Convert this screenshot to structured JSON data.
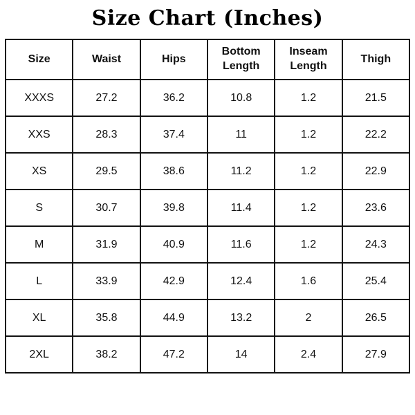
{
  "title": "Size Chart (Inches)",
  "colors": {
    "background": "#ffffff",
    "text": "#111111",
    "border": "#111111"
  },
  "chart_data": {
    "type": "table",
    "title": "Size Chart (Inches)",
    "unit": "Inches",
    "columns": [
      "Size",
      "Waist",
      "Hips",
      "Bottom Length",
      "Inseam Length",
      "Thigh"
    ],
    "rows": [
      [
        "XXXS",
        "27.2",
        "36.2",
        "10.8",
        "1.2",
        "21.5"
      ],
      [
        "XXS",
        "28.3",
        "37.4",
        "11",
        "1.2",
        "22.2"
      ],
      [
        "XS",
        "29.5",
        "38.6",
        "11.2",
        "1.2",
        "22.9"
      ],
      [
        "S",
        "30.7",
        "39.8",
        "11.4",
        "1.2",
        "23.6"
      ],
      [
        "M",
        "31.9",
        "40.9",
        "11.6",
        "1.2",
        "24.3"
      ],
      [
        "L",
        "33.9",
        "42.9",
        "12.4",
        "1.6",
        "25.4"
      ],
      [
        "XL",
        "35.8",
        "44.9",
        "13.2",
        "2",
        "26.5"
      ],
      [
        "2XL",
        "38.2",
        "47.2",
        "14",
        "2.4",
        "27.9"
      ]
    ]
  }
}
